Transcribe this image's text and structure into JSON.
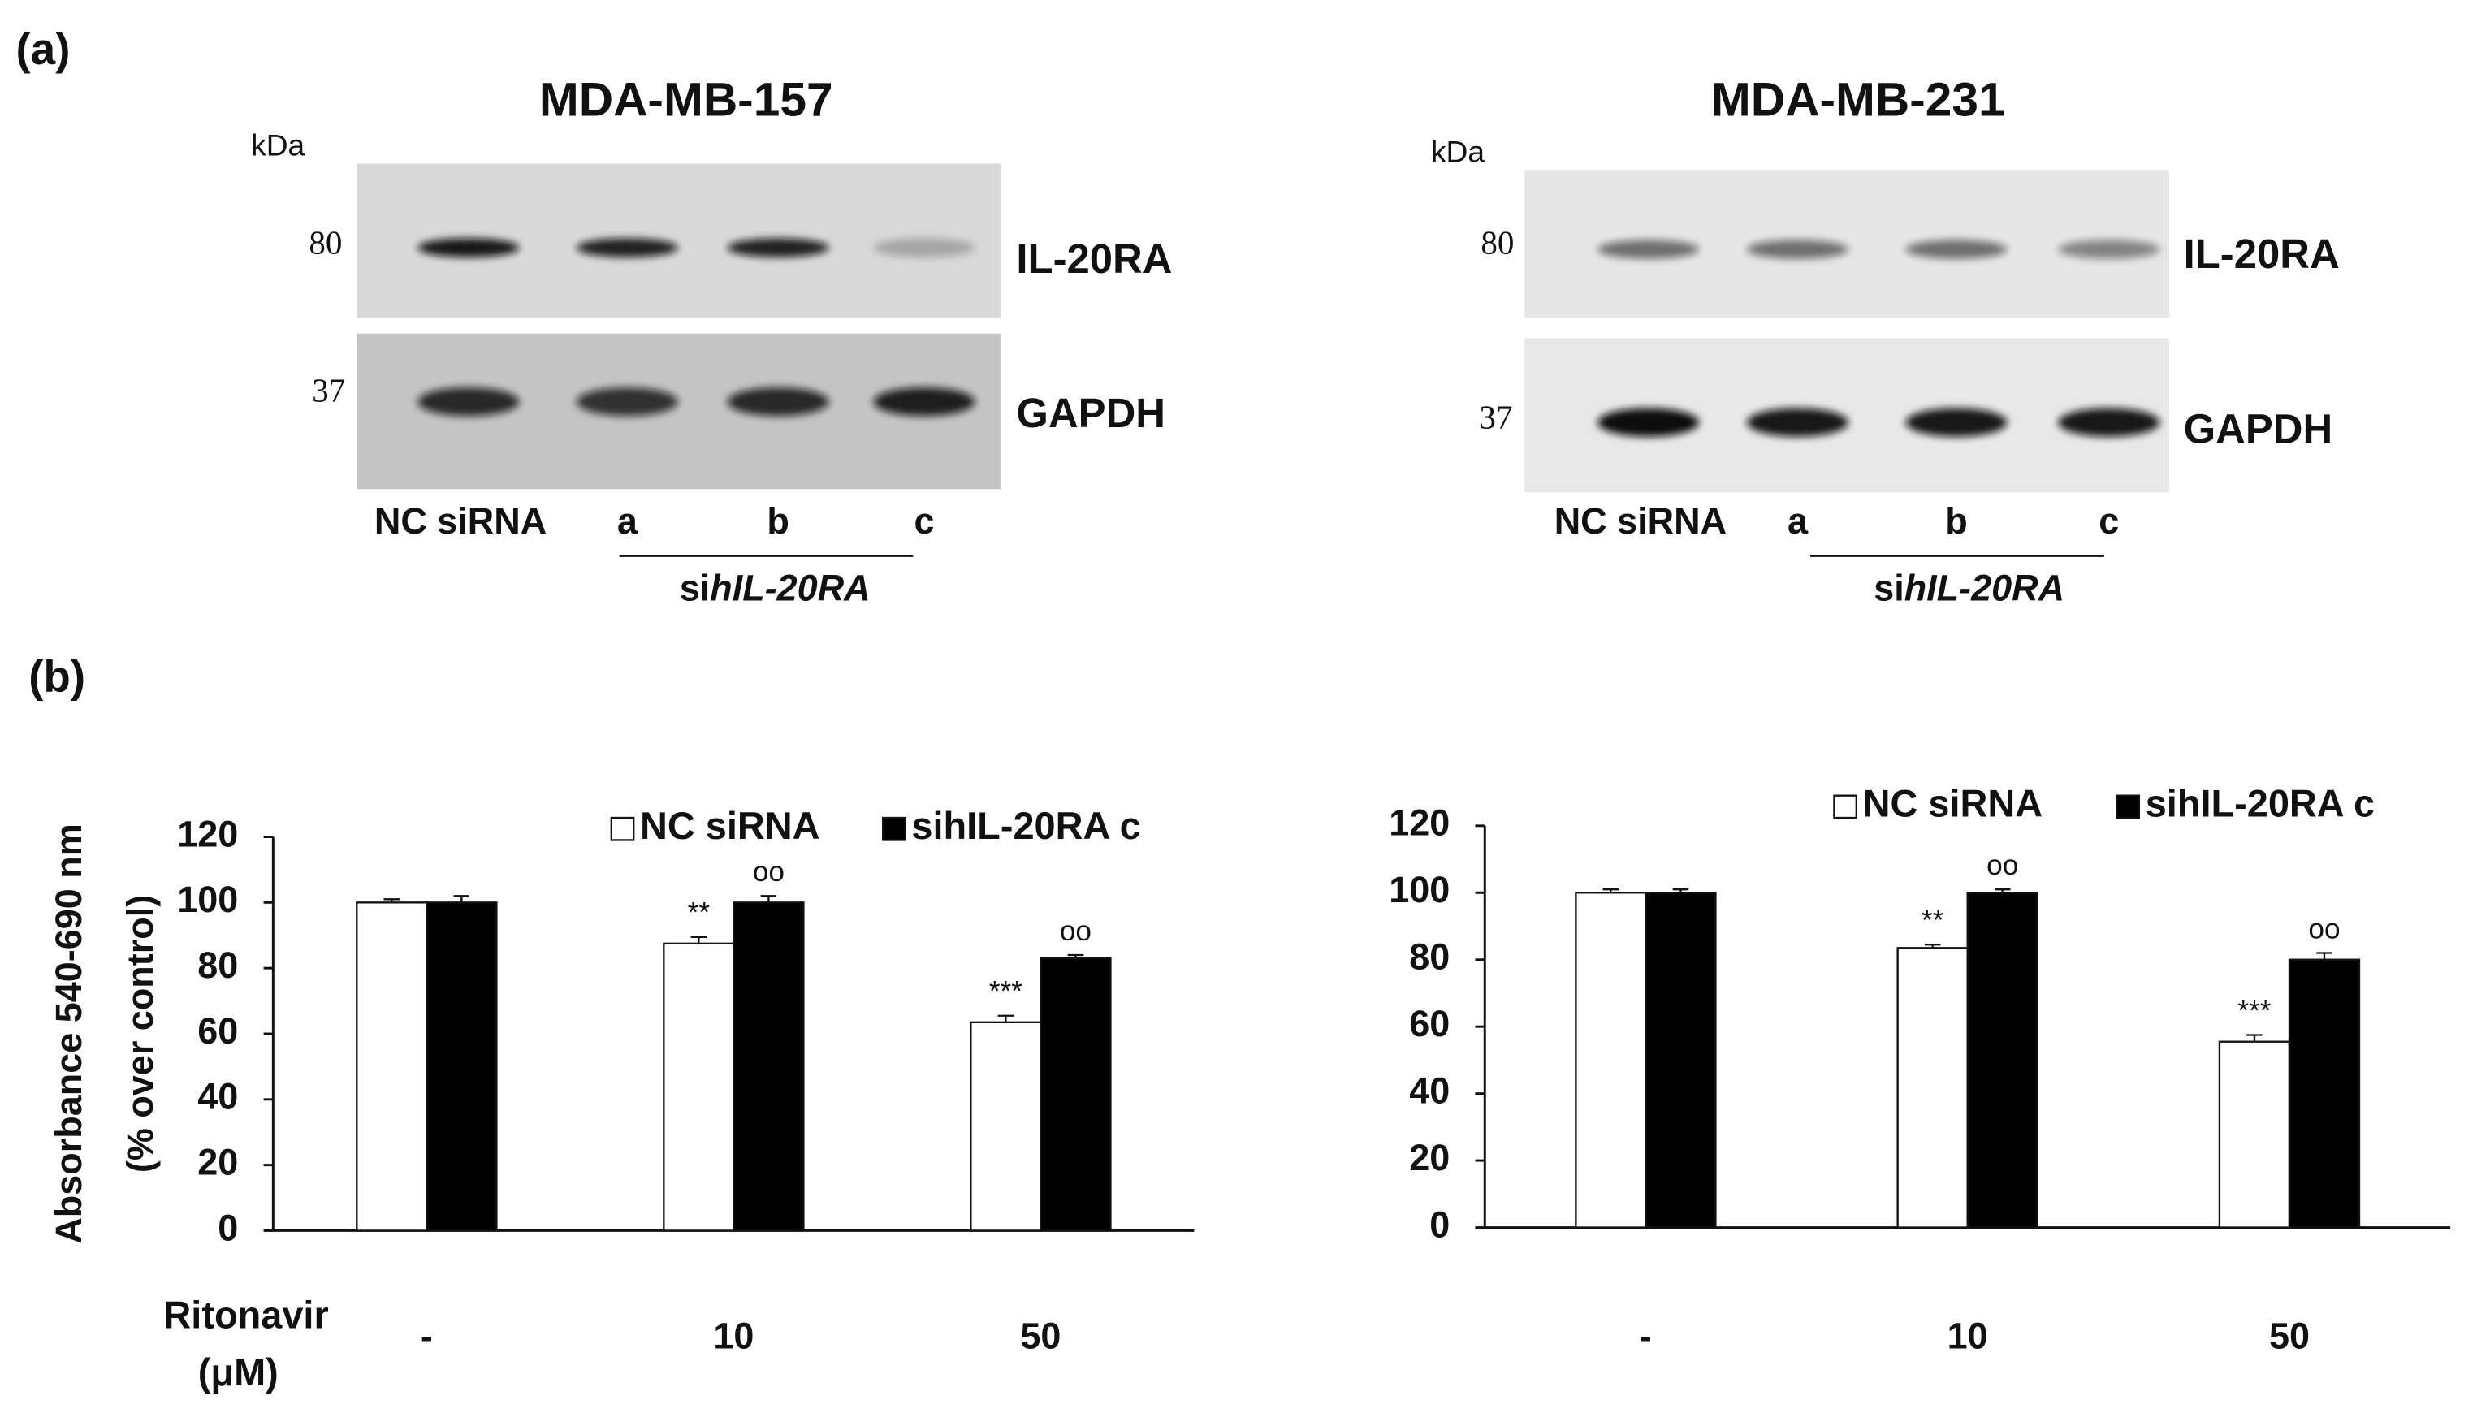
{
  "panel_a_label": "(a)",
  "panel_b_label": "(b)",
  "blots": [
    {
      "title": "MDA-MB-157",
      "kda": "kDa",
      "markers": [
        "80",
        "37"
      ],
      "proteins": [
        "IL-20RA",
        "GAPDH"
      ],
      "lanes": [
        "NC siRNA",
        "a",
        "b",
        "c"
      ],
      "group_prefix": "si",
      "group_gene": "hIL-20RA"
    },
    {
      "title": "MDA-MB-231",
      "kda": "kDa",
      "markers": [
        "80",
        "37"
      ],
      "proteins": [
        "IL-20RA",
        "GAPDH"
      ],
      "lanes": [
        "NC siRNA",
        "a",
        "b",
        "c"
      ],
      "group_prefix": "si",
      "group_gene": "hIL-20RA"
    }
  ],
  "chart_data": [
    {
      "type": "bar",
      "y_label": "Absorbance  540-690 nm",
      "y_label_2": "(% over control)",
      "x_label": "Ritonavir",
      "x_label_2": "(μM)",
      "categories": [
        "-",
        "10",
        "50"
      ],
      "ylim": [
        0,
        120
      ],
      "yticks": [
        0,
        20,
        40,
        60,
        80,
        100,
        120
      ],
      "series": [
        {
          "name": "NC siRNA",
          "color": "#ffffff",
          "values": [
            100,
            87.5,
            63.5
          ],
          "errors": [
            1,
            2,
            2
          ],
          "annotations": [
            null,
            "**",
            "***"
          ]
        },
        {
          "name": "sihIL-20RA  c",
          "color": "#000000",
          "values": [
            100,
            100,
            83
          ],
          "errors": [
            2,
            2,
            1
          ],
          "annotations": [
            null,
            "oo",
            "oo"
          ]
        }
      ]
    },
    {
      "type": "bar",
      "categories": [
        "-",
        "10",
        "50"
      ],
      "ylim": [
        0,
        120
      ],
      "yticks": [
        0,
        20,
        40,
        60,
        80,
        100,
        120
      ],
      "series": [
        {
          "name": "NC siRNA",
          "color": "#ffffff",
          "values": [
            100,
            83.5,
            55.5
          ],
          "errors": [
            1,
            1,
            2
          ],
          "annotations": [
            null,
            "**",
            "***"
          ]
        },
        {
          "name": "sihIL-20RA  c",
          "color": "#000000",
          "values": [
            100,
            100,
            80
          ],
          "errors": [
            1,
            1,
            2
          ],
          "annotations": [
            null,
            "oo",
            "oo"
          ]
        }
      ]
    }
  ]
}
